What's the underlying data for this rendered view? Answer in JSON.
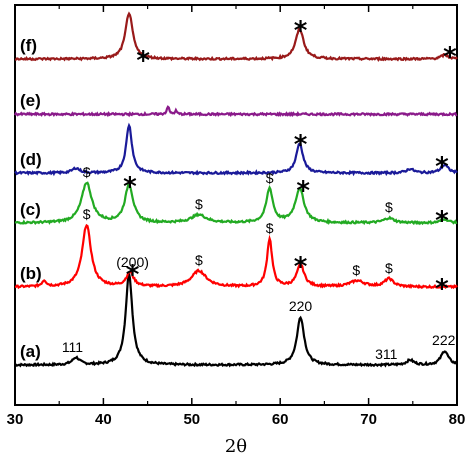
{
  "chart_data": {
    "type": "line",
    "title": "",
    "xlabel": "2θ",
    "ylabel": "",
    "xlim": [
      30,
      80
    ],
    "xticks": [
      "30",
      "40",
      "50",
      "60",
      "70",
      "80"
    ],
    "grid": false,
    "series": [
      {
        "name": "(a)",
        "color": "#000000",
        "baseline": 0.1,
        "peaks": [
          {
            "x": 36.9,
            "h": 0.018,
            "w": 0.5
          },
          {
            "x": 42.9,
            "h": 0.23,
            "w": 0.45
          },
          {
            "x": 62.3,
            "h": 0.12,
            "w": 0.5
          },
          {
            "x": 74.7,
            "h": 0.012,
            "w": 0.5
          },
          {
            "x": 78.6,
            "h": 0.035,
            "w": 0.5
          }
        ],
        "annotations": [
          {
            "text": "111",
            "x": 36.5,
            "kind": "hkl"
          },
          {
            "text": "(200)",
            "x": 43.3,
            "kind": "hkl"
          },
          {
            "text": "220",
            "x": 62.3,
            "kind": "hkl"
          },
          {
            "text": "311",
            "x": 72.0,
            "kind": "hkl"
          },
          {
            "text": "222",
            "x": 78.5,
            "kind": "hkl"
          }
        ]
      },
      {
        "name": "(b)",
        "color": "#ff0000",
        "baseline": 0.295,
        "peaks": [
          {
            "x": 33.3,
            "h": 0.015,
            "w": 0.3
          },
          {
            "x": 38.1,
            "h": 0.155,
            "w": 0.6
          },
          {
            "x": 43.0,
            "h": 0.035,
            "w": 0.5
          },
          {
            "x": 50.8,
            "h": 0.04,
            "w": 1.0
          },
          {
            "x": 58.8,
            "h": 0.12,
            "w": 0.35
          },
          {
            "x": 62.3,
            "h": 0.055,
            "w": 0.5
          },
          {
            "x": 68.7,
            "h": 0.015,
            "w": 1.0
          },
          {
            "x": 72.3,
            "h": 0.02,
            "w": 0.6
          }
        ],
        "annotations": [
          {
            "text": "$",
            "x": 38.1,
            "kind": "dollar"
          },
          {
            "text": "*",
            "x": 43.3,
            "kind": "star"
          },
          {
            "text": "$",
            "x": 50.8,
            "kind": "dollar"
          },
          {
            "text": "$",
            "x": 58.8,
            "kind": "dollar"
          },
          {
            "text": "*",
            "x": 62.3,
            "kind": "star"
          },
          {
            "text": "$",
            "x": 68.6,
            "kind": "dollar"
          },
          {
            "text": "$",
            "x": 72.3,
            "kind": "dollar"
          },
          {
            "text": "*",
            "x": 78.3,
            "kind": "star"
          }
        ]
      },
      {
        "name": "(c)",
        "color": "#22aa22",
        "baseline": 0.455,
        "peaks": [
          {
            "x": 38.1,
            "h": 0.1,
            "w": 0.7
          },
          {
            "x": 42.9,
            "h": 0.095,
            "w": 0.55
          },
          {
            "x": 50.8,
            "h": 0.02,
            "w": 1.0
          },
          {
            "x": 58.8,
            "h": 0.085,
            "w": 0.45
          },
          {
            "x": 62.2,
            "h": 0.085,
            "w": 0.6
          },
          {
            "x": 72.3,
            "h": 0.012,
            "w": 0.7
          },
          {
            "x": 78.6,
            "h": 0.01,
            "w": 0.5
          }
        ],
        "annotations": [
          {
            "text": "$",
            "x": 38.1,
            "kind": "dollar"
          },
          {
            "text": "*",
            "x": 43.0,
            "kind": "star"
          },
          {
            "text": "$",
            "x": 50.8,
            "kind": "dollar"
          },
          {
            "text": "$",
            "x": 58.8,
            "kind": "dollar"
          },
          {
            "text": "*",
            "x": 62.6,
            "kind": "star"
          },
          {
            "text": "$",
            "x": 72.3,
            "kind": "dollar"
          },
          {
            "text": "*",
            "x": 78.3,
            "kind": "star"
          }
        ]
      },
      {
        "name": "(d)",
        "color": "#1a1a99",
        "baseline": 0.58,
        "peaks": [
          {
            "x": 36.9,
            "h": 0.012,
            "w": 0.5
          },
          {
            "x": 42.9,
            "h": 0.12,
            "w": 0.4
          },
          {
            "x": 62.2,
            "h": 0.075,
            "w": 0.45
          },
          {
            "x": 74.7,
            "h": 0.01,
            "w": 0.5
          },
          {
            "x": 78.6,
            "h": 0.02,
            "w": 0.5
          }
        ],
        "annotations": [
          {
            "text": "*",
            "x": 62.3,
            "kind": "star"
          },
          {
            "text": "*",
            "x": 78.3,
            "kind": "star"
          }
        ]
      },
      {
        "name": "(e)",
        "color": "#8a1a8a",
        "baseline": 0.727,
        "peaks": [
          {
            "x": 47.3,
            "h": 0.02,
            "w": 0.15
          },
          {
            "x": 48.2,
            "h": 0.008,
            "w": 0.15
          }
        ],
        "annotations": []
      },
      {
        "name": "(f)",
        "color": "#991a1a",
        "baseline": 0.865,
        "peaks": [
          {
            "x": 42.9,
            "h": 0.115,
            "w": 0.5
          },
          {
            "x": 62.2,
            "h": 0.075,
            "w": 0.55
          },
          {
            "x": 78.6,
            "h": 0.01,
            "w": 0.5
          }
        ],
        "annotations": [
          {
            "text": "*",
            "x": 44.5,
            "kind": "star"
          },
          {
            "text": "*",
            "x": 62.3,
            "kind": "star"
          },
          {
            "text": "*",
            "x": 79.2,
            "kind": "star"
          }
        ]
      }
    ]
  }
}
